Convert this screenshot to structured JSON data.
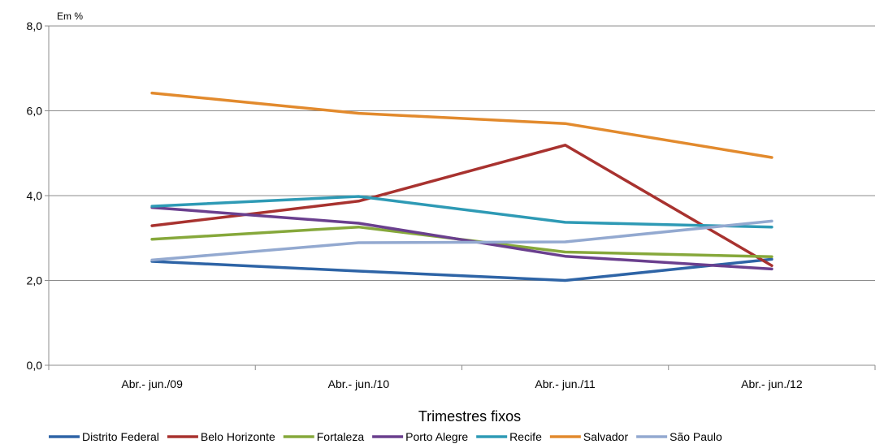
{
  "chart_data": {
    "type": "line",
    "unit_label": "Em %",
    "xlabel": "Trimestres fixos",
    "categories": [
      "Abr.- jun./09",
      "Abr.- jun./10",
      "Abr.- jun./11",
      "Abr.- jun./12"
    ],
    "ylim": [
      0,
      8
    ],
    "yticks": [
      "0,0",
      "2,0",
      "4,0",
      "6,0",
      "8,0"
    ],
    "ytick_values": [
      0,
      2,
      4,
      6,
      8
    ],
    "grid": true,
    "legend_position": "bottom",
    "series": [
      {
        "name": "Distrito Federal",
        "color": "#2E64A6",
        "values": [
          2.45,
          2.22,
          2.0,
          2.5
        ]
      },
      {
        "name": "Belo Horizonte",
        "color": "#A8322F",
        "values": [
          3.29,
          3.87,
          5.19,
          2.35
        ]
      },
      {
        "name": "Fortaleza",
        "color": "#86A83B",
        "values": [
          2.97,
          3.26,
          2.67,
          2.56
        ]
      },
      {
        "name": "Porto Alegre",
        "color": "#6A3F8E",
        "values": [
          3.72,
          3.35,
          2.57,
          2.27
        ]
      },
      {
        "name": "Recife",
        "color": "#2E9AB5",
        "values": [
          3.75,
          3.98,
          3.37,
          3.26
        ]
      },
      {
        "name": "Salvador",
        "color": "#E28A2D",
        "values": [
          6.42,
          5.94,
          5.7,
          4.9
        ]
      },
      {
        "name": "São Paulo",
        "color": "#93A9D0",
        "values": [
          2.48,
          2.89,
          2.91,
          3.4
        ]
      }
    ]
  }
}
